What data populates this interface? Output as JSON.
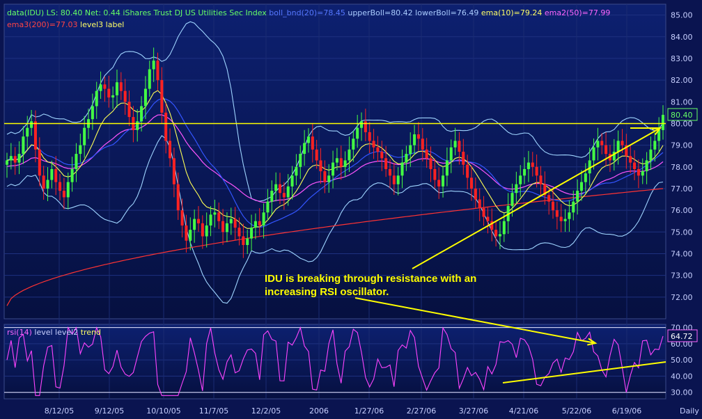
{
  "legend_price": [
    {
      "text": "data(IDU) LS: 80.40  Net: 0.44  iShares Trust DJ US Utilities Sec Index",
      "color": "#66ff66"
    },
    {
      "text": "boll_bnd(20)=78.45",
      "color": "#5577ff"
    },
    {
      "text": "upperBoll=80.42",
      "color": "#aaccff"
    },
    {
      "text": "lowerBoll=76.49",
      "color": "#aaccff"
    },
    {
      "text": "ema(10)=79.24",
      "color": "#ffff66"
    },
    {
      "text": "ema2(50)=77.99",
      "color": "#ff66ff"
    }
  ],
  "legend_price_line2": [
    {
      "text": "ema3(200)=77.03",
      "color": "#ff4444"
    },
    {
      "text": "level3 label",
      "color": "#ffff66"
    }
  ],
  "legend_rsi": [
    {
      "text": "rsi(14)",
      "color": "#ff66ff"
    },
    {
      "text": "level level2",
      "color": "#c8d0ff"
    },
    {
      "text": "trend",
      "color": "#ffff66"
    }
  ],
  "annotation": {
    "line1": "IDU is breaking through resistance with an",
    "line2": "increasing RSI oscillator."
  },
  "period_label": "Daily",
  "colors": {
    "background": "#0a1450",
    "up": "#44ff44",
    "down": "#ff2222",
    "resistance": "#ffff00",
    "rsi": "#ff44ff"
  },
  "chart_data": [
    {
      "type": "candlestick",
      "ylim": [
        71,
        85.5
      ],
      "yticks": [
        "85.00",
        "84.00",
        "83.00",
        "82.00",
        "81.00",
        "80.00",
        "79.00",
        "78.00",
        "77.00",
        "76.00",
        "75.00",
        "74.00",
        "73.00",
        "72.00"
      ],
      "last_price": "80.40",
      "resistance_level": 80,
      "xticks": [
        "8/12/05",
        "9/12/05",
        "10/10/05",
        "11/7/05",
        "12/2/05",
        "2006",
        "1/27/06",
        "2/27/06",
        "3/27/06",
        "4/21/06",
        "5/22/06",
        "6/19/06"
      ],
      "close": [
        78.3,
        78.5,
        78.2,
        78.6,
        79.4,
        79.8,
        80.1,
        78.8,
        77.6,
        77.0,
        77.4,
        77.9,
        77.3,
        76.9,
        76.6,
        77.3,
        77.9,
        78.6,
        79.0,
        79.8,
        80.2,
        80.8,
        81.5,
        81.8,
        81.6,
        81.2,
        81.3,
        81.9,
        81.5,
        81.0,
        80.3,
        79.7,
        80.1,
        80.8,
        81.6,
        82.5,
        82.9,
        82.0,
        80.5,
        79.2,
        78.4,
        77.2,
        76.0,
        75.3,
        74.6,
        75.1,
        75.6,
        75.4,
        74.8,
        75.3,
        75.8,
        75.9,
        75.5,
        75.0,
        75.4,
        75.6,
        75.2,
        74.8,
        74.4,
        74.7,
        75.2,
        75.5,
        75.3,
        75.9,
        76.4,
        76.9,
        77.2,
        76.8,
        76.6,
        77.1,
        77.6,
        78.0,
        78.6,
        79.1,
        79.4,
        78.8,
        78.3,
        77.8,
        77.3,
        77.6,
        78.2,
        78.4,
        78.0,
        78.3,
        78.8,
        79.3,
        79.8,
        80.1,
        79.6,
        79.2,
        78.9,
        78.7,
        78.4,
        77.9,
        77.6,
        77.2,
        77.6,
        78.2,
        78.6,
        79.0,
        79.5,
        79.3,
        78.8,
        78.4,
        77.9,
        77.4,
        77.1,
        77.6,
        78.3,
        78.9,
        79.2,
        78.7,
        78.1,
        77.5,
        77.0,
        76.5,
        76.1,
        75.7,
        75.5,
        75.1,
        74.8,
        74.9,
        75.5,
        76.2,
        76.8,
        77.2,
        77.6,
        77.9,
        78.2,
        78.0,
        77.6,
        77.2,
        76.7,
        76.4,
        76.0,
        75.7,
        75.5,
        75.6,
        75.9,
        76.4,
        76.9,
        77.3,
        77.7,
        78.3,
        78.9,
        79.2,
        79.0,
        78.6,
        78.3,
        78.7,
        79.2,
        79.0,
        78.5,
        78.2,
        77.9,
        77.6,
        77.8,
        78.3,
        78.8,
        79.2,
        79.7,
        80.4
      ],
      "series": [
        {
          "name": "upperBoll",
          "last": 80.42
        },
        {
          "name": "lowerBoll",
          "last": 76.49
        },
        {
          "name": "boll_bnd(20)",
          "last": 78.45
        },
        {
          "name": "ema(10)",
          "last": 79.24
        },
        {
          "name": "ema2(50)",
          "last": 77.99
        },
        {
          "name": "ema3(200)",
          "last": 77.03
        }
      ]
    },
    {
      "type": "line",
      "ylim": [
        26,
        72
      ],
      "yticks": [
        "70.00",
        "60.00",
        "50.00",
        "40.00",
        "30.00"
      ],
      "levels": [
        30,
        70
      ],
      "last_value": "64.72",
      "series": [
        {
          "name": "rsi(14)",
          "last": 64.72
        }
      ]
    }
  ]
}
